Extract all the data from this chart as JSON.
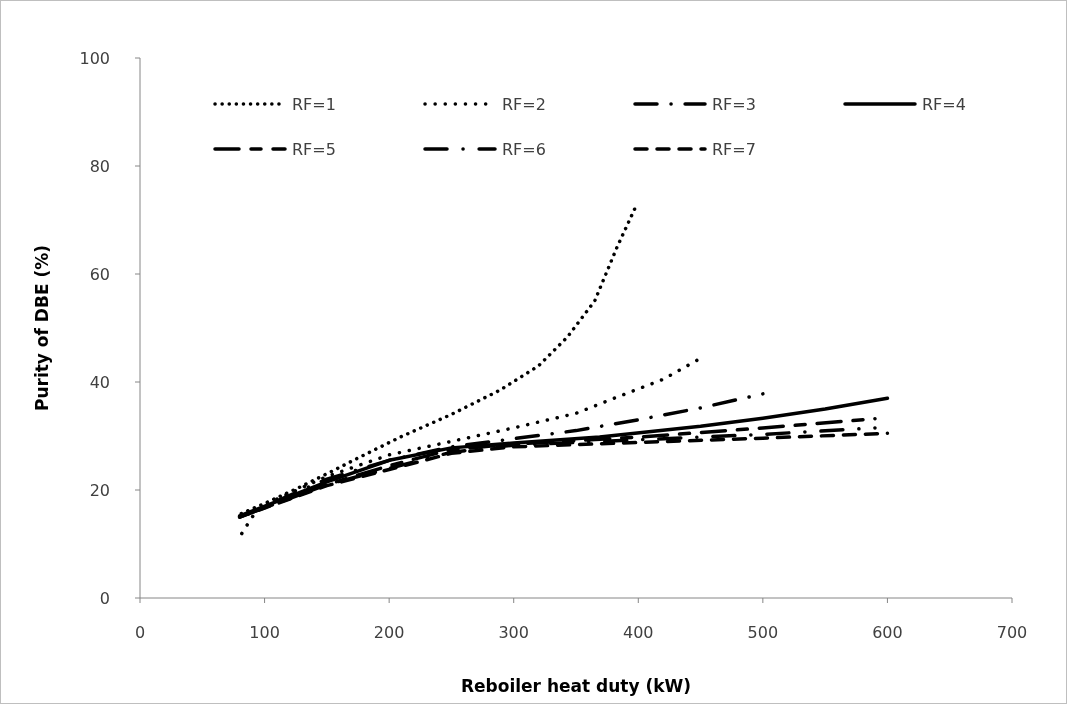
{
  "chart_data": {
    "type": "line",
    "xlabel": "Reboiler heat duty (kW)",
    "ylabel": "Purity of DBE (%)",
    "xlim": [
      0,
      700
    ],
    "ylim": [
      0,
      100
    ],
    "xticks": [
      0,
      100,
      200,
      300,
      400,
      500,
      600,
      700
    ],
    "yticks": [
      0,
      20,
      40,
      60,
      80,
      100
    ],
    "grid": false,
    "legend": "top",
    "marker": "none",
    "series": [
      {
        "name": "RF=1",
        "color": "#000000",
        "line_style": "dotted",
        "x": [
          80,
          100,
          128,
          150,
          180,
          209,
          250,
          289,
          320,
          343,
          365,
          383,
          397
        ],
        "values": [
          15.5,
          17.5,
          20.5,
          23,
          26.5,
          29.8,
          34,
          38.5,
          43,
          48.3,
          55,
          65,
          72
        ]
      },
      {
        "name": "RF=2",
        "color": "#000000",
        "line_style": "dotted",
        "x": [
          80,
          90,
          100,
          150,
          200,
          250,
          300,
          350,
          383,
          420,
          447
        ],
        "values": [
          11.3,
          15,
          17.3,
          22.5,
          26.5,
          29,
          31.5,
          34.2,
          37.2,
          40.5,
          44
        ]
      },
      {
        "name": "RF=3",
        "color": "#000000",
        "line_style": "dashed",
        "x": [
          80,
          150,
          200,
          250,
          300,
          350,
          400,
          450,
          500
        ],
        "values": [
          15,
          22,
          25.5,
          28,
          29.5,
          31,
          33,
          35.2,
          37.8
        ]
      },
      {
        "name": "RF=4",
        "color": "#000000",
        "line_style": "solid",
        "x": [
          80,
          150,
          200,
          250,
          300,
          369,
          450,
          500,
          550,
          600
        ],
        "values": [
          15.2,
          21.5,
          25.5,
          27.8,
          28.7,
          29.8,
          31.8,
          33.3,
          35,
          37
        ]
      },
      {
        "name": "RF=5",
        "color": "#000000",
        "line_style": "dashed",
        "x": [
          80,
          150,
          200,
          250,
          300,
          400,
          500,
          590
        ],
        "values": [
          15,
          21,
          24.5,
          27.5,
          28.5,
          29.8,
          31.5,
          33.2
        ]
      },
      {
        "name": "RF=6",
        "color": "#000000",
        "line_style": "dashed",
        "x": [
          80,
          150,
          200,
          250,
          300,
          400,
          500,
          590
        ],
        "values": [
          15,
          21,
          24,
          27,
          28.3,
          29.3,
          30.3,
          31.5
        ]
      },
      {
        "name": "RF=7",
        "color": "#000000",
        "line_style": "dashed",
        "x": [
          80,
          150,
          200,
          250,
          300,
          400,
          500,
          600
        ],
        "values": [
          15,
          20.8,
          23.8,
          26.8,
          28,
          28.8,
          29.6,
          30.5
        ]
      }
    ]
  }
}
